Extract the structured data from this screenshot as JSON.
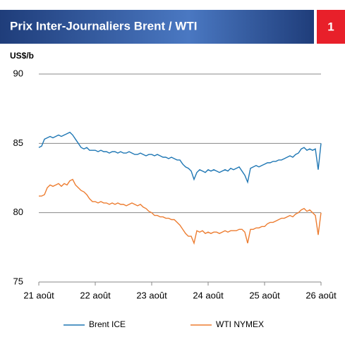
{
  "chart_data": {
    "type": "line",
    "title": "Prix Inter-Journaliers Brent / WTI",
    "badge": "1",
    "ylabel": "US$/b",
    "categories": [
      "21 août",
      null,
      null,
      null,
      null,
      null,
      null,
      null,
      null,
      null,
      null,
      null,
      null,
      null,
      null,
      null,
      null,
      null,
      null,
      null,
      "22 août",
      null,
      null,
      null,
      null,
      null,
      null,
      null,
      null,
      null,
      null,
      null,
      null,
      null,
      null,
      null,
      null,
      null,
      null,
      null,
      "23 août",
      null,
      null,
      null,
      null,
      null,
      null,
      null,
      null,
      null,
      null,
      null,
      null,
      null,
      null,
      null,
      null,
      null,
      null,
      null,
      "24 août",
      null,
      null,
      null,
      null,
      null,
      null,
      null,
      null,
      null,
      null,
      null,
      null,
      null,
      null,
      null,
      null,
      null,
      null,
      null,
      "25 août",
      null,
      null,
      null,
      null,
      null,
      null,
      null,
      null,
      null,
      null,
      null,
      null,
      null,
      null,
      null,
      null,
      null,
      null,
      null,
      "26 août"
    ],
    "series": [
      {
        "name": "Brent ICE",
        "color": "#1f77b4",
        "values": [
          84.7,
          84.8,
          85.3,
          85.4,
          85.5,
          85.4,
          85.5,
          85.6,
          85.5,
          85.6,
          85.7,
          85.8,
          85.6,
          85.3,
          85.0,
          84.7,
          84.6,
          84.7,
          84.5,
          84.5,
          84.5,
          84.4,
          84.5,
          84.4,
          84.4,
          84.3,
          84.4,
          84.4,
          84.3,
          84.4,
          84.3,
          84.3,
          84.4,
          84.3,
          84.2,
          84.2,
          84.3,
          84.2,
          84.1,
          84.2,
          84.2,
          84.1,
          84.2,
          84.1,
          84.0,
          84.0,
          83.9,
          84.0,
          83.9,
          83.8,
          83.8,
          83.5,
          83.3,
          83.2,
          83.0,
          82.4,
          82.9,
          83.1,
          83.0,
          82.9,
          83.1,
          83.0,
          83.1,
          83.0,
          82.9,
          83.0,
          83.1,
          83.0,
          83.2,
          83.1,
          83.2,
          83.3,
          83.0,
          82.7,
          82.2,
          83.2,
          83.3,
          83.4,
          83.3,
          83.4,
          83.5,
          83.6,
          83.6,
          83.7,
          83.7,
          83.8,
          83.8,
          83.9,
          84.0,
          84.1,
          84.0,
          84.2,
          84.3,
          84.6,
          84.7,
          84.5,
          84.6,
          84.5,
          84.6,
          83.1,
          85.0
        ]
      },
      {
        "name": "WTI NYMEX",
        "color": "#ed7d31",
        "values": [
          81.2,
          81.2,
          81.3,
          81.8,
          82.0,
          81.9,
          82.0,
          82.1,
          81.9,
          82.1,
          82.0,
          82.3,
          82.4,
          82.0,
          81.8,
          81.6,
          81.5,
          81.3,
          81.0,
          80.8,
          80.8,
          80.7,
          80.8,
          80.7,
          80.7,
          80.6,
          80.7,
          80.6,
          80.7,
          80.6,
          80.6,
          80.5,
          80.6,
          80.7,
          80.6,
          80.5,
          80.6,
          80.4,
          80.3,
          80.1,
          80.0,
          79.8,
          79.8,
          79.7,
          79.7,
          79.6,
          79.6,
          79.5,
          79.5,
          79.3,
          79.1,
          78.8,
          78.5,
          78.3,
          78.3,
          77.8,
          78.7,
          78.6,
          78.7,
          78.5,
          78.6,
          78.5,
          78.6,
          78.6,
          78.5,
          78.6,
          78.7,
          78.6,
          78.7,
          78.7,
          78.7,
          78.8,
          78.8,
          78.6,
          77.8,
          78.8,
          78.8,
          78.9,
          78.9,
          79.0,
          79.0,
          79.2,
          79.3,
          79.3,
          79.4,
          79.5,
          79.6,
          79.6,
          79.7,
          79.8,
          79.7,
          79.9,
          80.0,
          80.2,
          80.3,
          80.1,
          80.2,
          80.0,
          79.8,
          78.4,
          80.0
        ]
      }
    ],
    "ylim": [
      75,
      90
    ],
    "yticks": [
      75,
      80,
      85,
      90
    ],
    "grid": true
  }
}
